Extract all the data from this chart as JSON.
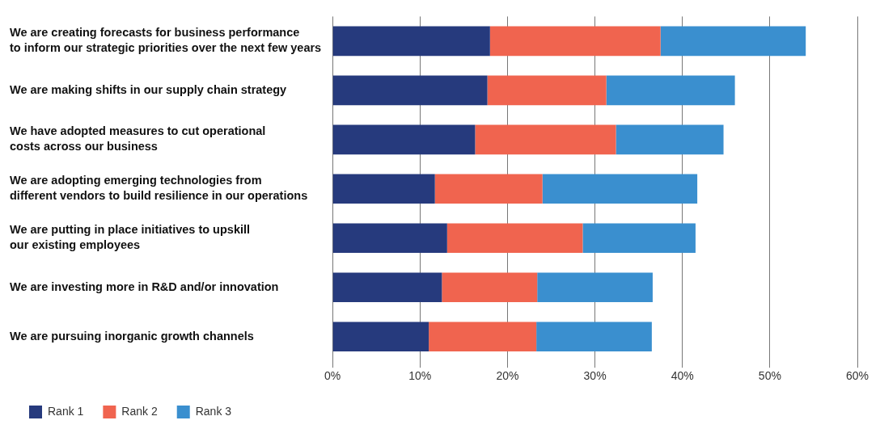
{
  "chart_data": {
    "type": "bar",
    "orientation": "horizontal",
    "stacked": true,
    "categories": [
      "We are creating forecasts for business performance\nto inform our strategic priorities over the next few years",
      "We are making shifts in our supply chain strategy",
      "We have adopted measures to cut operational\ncosts across our business",
      "We are adopting emerging technologies from\ndifferent vendors to build resilience in our operations",
      "We are putting in place initiatives to upskill\nour existing employees",
      "We are investing more in R&D and/or innovation",
      "We are pursuing inorganic growth channels"
    ],
    "series": [
      {
        "name": "Rank 1",
        "color": "#263a7d",
        "values": [
          18.0,
          17.7,
          16.3,
          11.7,
          13.1,
          12.5,
          11.0
        ]
      },
      {
        "name": "Rank 2",
        "color": "#f0644f",
        "values": [
          19.5,
          13.6,
          16.1,
          12.3,
          15.5,
          10.9,
          12.3
        ]
      },
      {
        "name": "Rank 3",
        "color": "#3a8fcf",
        "values": [
          16.6,
          14.7,
          12.3,
          17.7,
          12.9,
          13.2,
          13.2
        ]
      }
    ],
    "xlim": [
      0,
      60
    ],
    "xticks": [
      {
        "value": 0,
        "label": "0%"
      },
      {
        "value": 10,
        "label": "10%"
      },
      {
        "value": 20,
        "label": "20%"
      },
      {
        "value": 30,
        "label": "30%"
      },
      {
        "value": 40,
        "label": "40%"
      },
      {
        "value": 50,
        "label": "50%"
      },
      {
        "value": 60,
        "label": "60%"
      }
    ],
    "grid": "x",
    "legend": "bottom"
  }
}
